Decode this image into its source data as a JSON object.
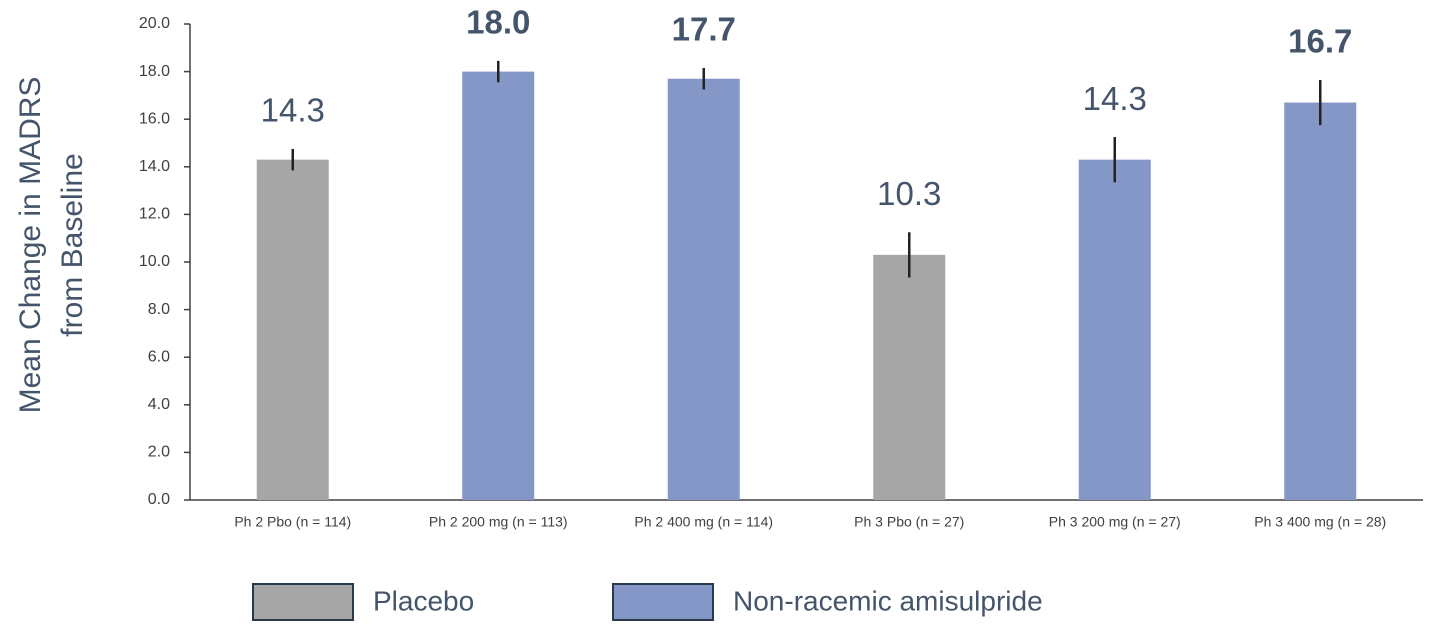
{
  "chart_data": {
    "type": "bar",
    "ylabel": [
      "Mean Change in MADRS",
      "from Baseline"
    ],
    "categories": [
      "Ph 2 Pbo (n = 114)",
      "Ph 2 200 mg (n = 113)",
      "Ph 2 400 mg (n = 114)",
      "Ph 3 Pbo (n = 27)",
      "Ph 3 200 mg (n = 27)",
      "Ph 3 400 mg (n = 28)"
    ],
    "series": [
      {
        "name": "Placebo",
        "color": "#a6a6a6",
        "values": [
          14.3,
          null,
          null,
          10.3,
          null,
          null
        ],
        "value_labels": [
          "14.3",
          null,
          null,
          "10.3",
          null,
          null
        ],
        "value_label_bold": [
          false,
          null,
          null,
          false,
          null,
          null
        ],
        "errors": [
          0.45,
          null,
          null,
          0.95,
          null,
          null
        ]
      },
      {
        "name": "Non-racemic amisulpride",
        "color": "#8497c7",
        "values": [
          null,
          18.0,
          17.7,
          null,
          14.3,
          16.7
        ],
        "value_labels": [
          null,
          "18.0",
          "17.7",
          null,
          "14.3",
          "16.7"
        ],
        "value_label_bold": [
          null,
          true,
          true,
          null,
          false,
          true
        ],
        "errors": [
          null,
          0.45,
          0.45,
          null,
          0.95,
          0.95
        ]
      }
    ],
    "ylim": [
      0,
      20
    ],
    "yticks": [
      {
        "value": 0,
        "label": "0.0"
      },
      {
        "value": 2,
        "label": "2.0"
      },
      {
        "value": 4,
        "label": "4.0"
      },
      {
        "value": 6,
        "label": "6.0"
      },
      {
        "value": 8,
        "label": "8.0"
      },
      {
        "value": 10,
        "label": "10.0"
      },
      {
        "value": 12,
        "label": "12.0"
      },
      {
        "value": 14,
        "label": "14.0"
      },
      {
        "value": 16,
        "label": "16.0"
      },
      {
        "value": 18,
        "label": "18.0"
      },
      {
        "value": 20,
        "label": "20.0"
      }
    ],
    "grid": false,
    "legend": "bottom"
  }
}
